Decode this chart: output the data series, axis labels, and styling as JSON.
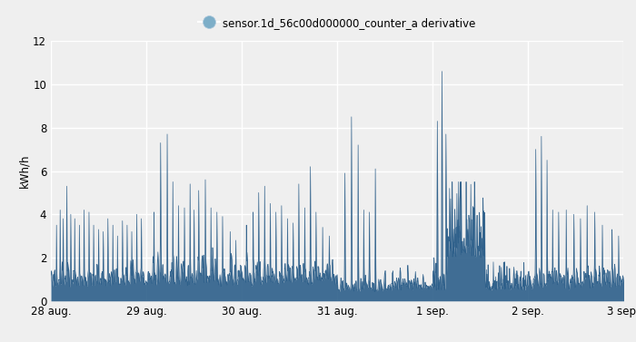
{
  "legend_label": "sensor.1d_56c00d000000_counter_a derivative",
  "ylabel": "kWh/h",
  "ylim": [
    0,
    12
  ],
  "yticks": [
    0,
    2,
    4,
    6,
    8,
    10,
    12
  ],
  "xtick_labels": [
    "28 aug.",
    "29 aug.",
    "30 aug.",
    "31 aug.",
    "1 sep.",
    "2 sep.",
    "3 sep."
  ],
  "line_color": "#2d5f8a",
  "fill_color": "#2d5f8a",
  "fill_alpha": 0.9,
  "background_color": "#efefef",
  "grid_color": "#ffffff",
  "legend_marker_color": "#7daec8",
  "legend_marker_size": 10,
  "fig_bg": "#efefef",
  "tick_color": "#555555",
  "tick_fontsize": 8.5
}
